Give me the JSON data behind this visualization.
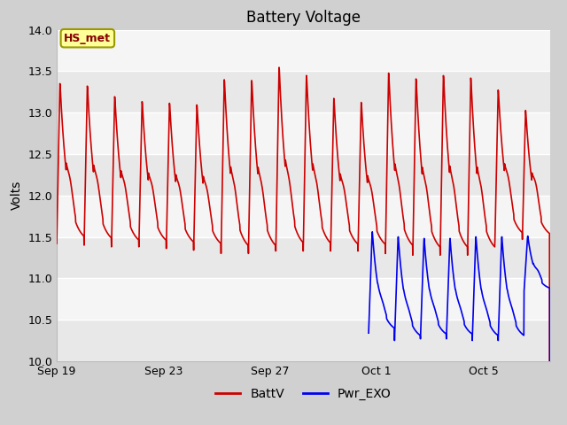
{
  "title": "Battery Voltage",
  "ylabel": "Volts",
  "ylim": [
    10.0,
    14.0
  ],
  "yticks": [
    10.0,
    10.5,
    11.0,
    11.5,
    12.0,
    12.5,
    13.0,
    13.5,
    14.0
  ],
  "xtick_labels": [
    "Sep 19",
    "Sep 23",
    "Sep 27",
    "Oct 1",
    "Oct 5"
  ],
  "xtick_positions": [
    0,
    4,
    8,
    12,
    16
  ],
  "xlim": [
    0,
    18.5
  ],
  "total_days": 18.5,
  "fig_bg_color": "#d0d0d0",
  "plot_bg_color": "#e8e8e8",
  "band_light": "#e8e8e8",
  "band_white": "#f5f5f5",
  "grid_line_color": "#ffffff",
  "line_color_batt": "#cc0000",
  "line_color_pwr": "#0000ee",
  "line_width": 1.2,
  "legend_label_batt": "BattV",
  "legend_label_pwr": "Pwr_EXO",
  "annotation_text": "HS_met",
  "annotation_bg": "#ffff99",
  "annotation_border": "#999900",
  "annotation_text_color": "#880000",
  "title_fontsize": 12,
  "axis_label_fontsize": 10,
  "tick_fontsize": 9,
  "legend_fontsize": 10
}
